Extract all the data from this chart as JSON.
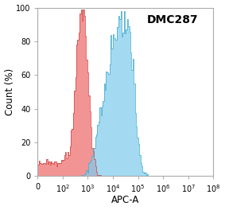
{
  "title": "DMC287",
  "xlabel": "APC-A",
  "ylabel": "Count (%)",
  "ylim": [
    0,
    100
  ],
  "yticks": [
    0,
    20,
    40,
    60,
    80,
    100
  ],
  "red_color": "#F07070",
  "red_edge": "#D04040",
  "blue_color": "#80CCEE",
  "blue_edge": "#40AACC",
  "background_color": "#ffffff",
  "title_fontsize": 10,
  "axis_fontsize": 8.5,
  "tick_fontsize": 7
}
